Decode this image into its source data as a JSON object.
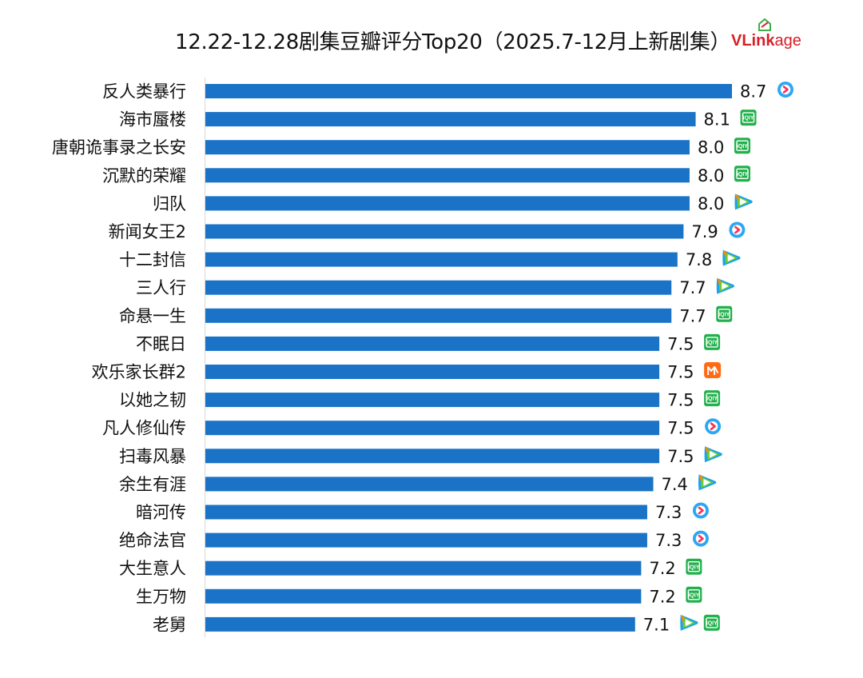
{
  "title": "12.22-12.28剧集豆瓣评分Top20（2025.7-12月上新剧集）",
  "logo": {
    "text_bold": "VLink",
    "text_rest": "age",
    "color": "#d81e26"
  },
  "bar_color": "#1a73c6",
  "platform_icons": {
    "tencent": {
      "name": "tencent-video-icon",
      "colors": [
        "#1aa3f0",
        "#ff8a00",
        "#6ccb2f"
      ]
    },
    "youku": {
      "name": "youku-icon",
      "colors": [
        "#2aa7f5",
        "#ff2d55"
      ]
    },
    "iqiyi": {
      "name": "iqiyi-icon",
      "color": "#22b14c",
      "text": "iQIY"
    },
    "mgtv": {
      "name": "mango-tv-icon",
      "color": "#ff6a13"
    }
  },
  "chart_data": {
    "type": "bar",
    "orientation": "horizontal",
    "title": "12.22-12.28剧集豆瓣评分Top20（2025.7-12月上新剧集）",
    "xlabel": "",
    "ylabel": "",
    "categories": [
      "反人类暴行",
      "海市蜃楼",
      "唐朝诡事录之长安",
      "沉默的荣耀",
      "归队",
      "新闻女王2",
      "十二封信",
      "三人行",
      "命悬一生",
      "不眠日",
      "欢乐家长群2",
      "以她之韧",
      "凡人修仙传",
      "扫毒风暴",
      "余生有涯",
      "暗河传",
      "绝命法官",
      "大生意人",
      "生万物",
      "老舅"
    ],
    "values": [
      8.7,
      8.1,
      8.0,
      8.0,
      8.0,
      7.9,
      7.8,
      7.7,
      7.7,
      7.5,
      7.5,
      7.5,
      7.5,
      7.5,
      7.4,
      7.3,
      7.3,
      7.2,
      7.2,
      7.1
    ],
    "value_labels": [
      "8.7",
      "8.1",
      "8.0",
      "8.0",
      "8.0",
      "7.9",
      "7.8",
      "7.7",
      "7.7",
      "7.5",
      "7.5",
      "7.5",
      "7.5",
      "7.5",
      "7.4",
      "7.3",
      "7.3",
      "7.2",
      "7.2",
      "7.1"
    ],
    "platforms": [
      [
        "youku"
      ],
      [
        "iqiyi"
      ],
      [
        "iqiyi"
      ],
      [
        "iqiyi"
      ],
      [
        "tencent"
      ],
      [
        "youku"
      ],
      [
        "tencent"
      ],
      [
        "tencent"
      ],
      [
        "iqiyi"
      ],
      [
        "iqiyi"
      ],
      [
        "mgtv"
      ],
      [
        "iqiyi"
      ],
      [
        "youku"
      ],
      [
        "tencent"
      ],
      [
        "tencent"
      ],
      [
        "youku"
      ],
      [
        "youku"
      ],
      [
        "iqiyi"
      ],
      [
        "iqiyi"
      ],
      [
        "tencent",
        "iqiyi"
      ]
    ],
    "xlim": [
      0,
      8.7
    ],
    "grid": false,
    "legend": "none"
  }
}
